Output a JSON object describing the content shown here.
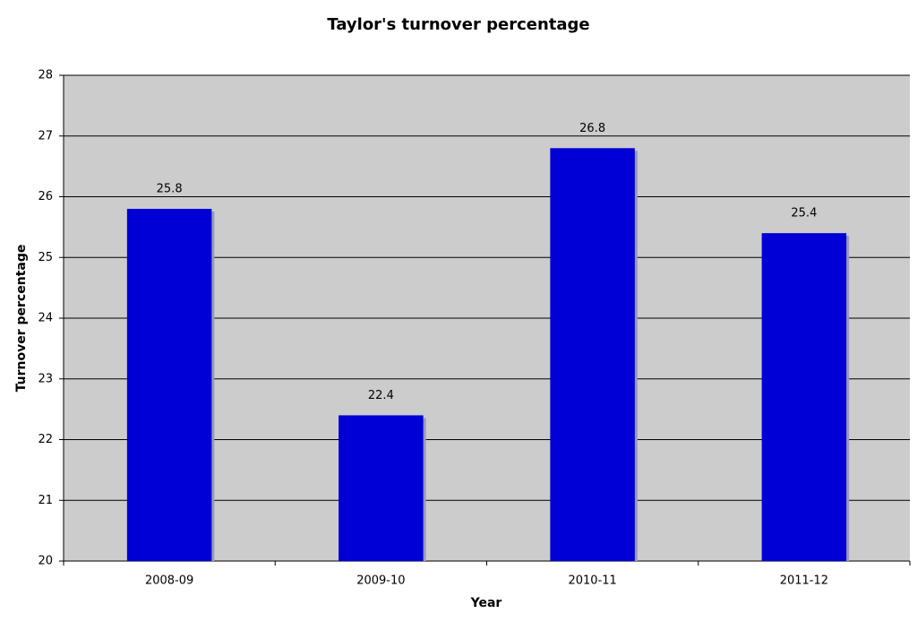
{
  "chart_data": {
    "type": "bar",
    "title": "Taylor's turnover percentage",
    "x_label": "Year",
    "y_label": "Turnover percentage",
    "categories": [
      "2008-09",
      "2009-10",
      "2010-11",
      "2011-12"
    ],
    "values": [
      25.8,
      22.4,
      26.8,
      25.4
    ],
    "color": "#0000d6",
    "ylim": [
      20,
      28
    ],
    "yticks": [
      20,
      21,
      22,
      23,
      24,
      25,
      26,
      27,
      28
    ],
    "grid": true
  }
}
